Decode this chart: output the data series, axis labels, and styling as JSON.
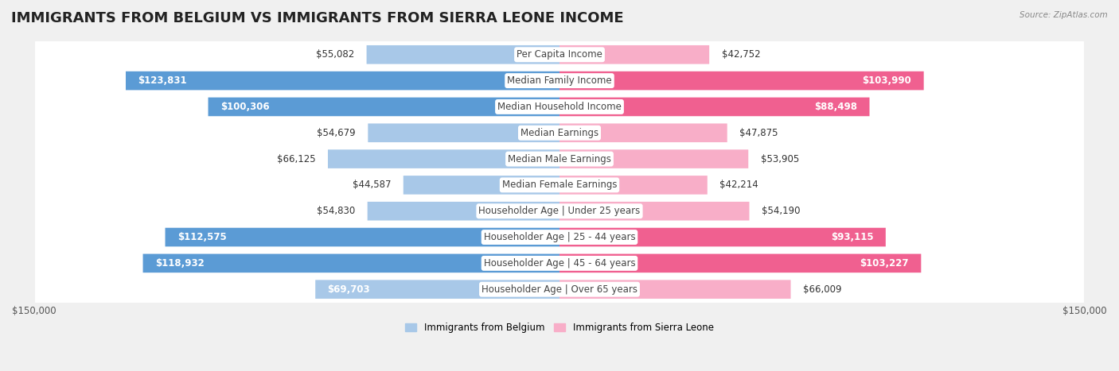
{
  "title": "IMMIGRANTS FROM BELGIUM VS IMMIGRANTS FROM SIERRA LEONE INCOME",
  "source": "Source: ZipAtlas.com",
  "categories": [
    "Per Capita Income",
    "Median Family Income",
    "Median Household Income",
    "Median Earnings",
    "Median Male Earnings",
    "Median Female Earnings",
    "Householder Age | Under 25 years",
    "Householder Age | 25 - 44 years",
    "Householder Age | 45 - 64 years",
    "Householder Age | Over 65 years"
  ],
  "belgium_values": [
    55082,
    123831,
    100306,
    54679,
    66125,
    44587,
    54830,
    112575,
    118932,
    69703
  ],
  "sierraleone_values": [
    42752,
    103990,
    88498,
    47875,
    53905,
    42214,
    54190,
    93115,
    103227,
    66009
  ],
  "belgium_color_small": "#a8c8e8",
  "belgium_color_large": "#5b9bd5",
  "sierraleone_color_small": "#f8aec8",
  "sierraleone_color_large": "#f06090",
  "belgium_label": "Immigrants from Belgium",
  "sierraleone_label": "Immigrants from Sierra Leone",
  "max_value": 150000,
  "background_color": "#f0f0f0",
  "row_bg_color": "#e8e8e8",
  "title_fontsize": 13,
  "label_fontsize": 8.5,
  "value_fontsize": 8.5,
  "large_threshold": 80000
}
